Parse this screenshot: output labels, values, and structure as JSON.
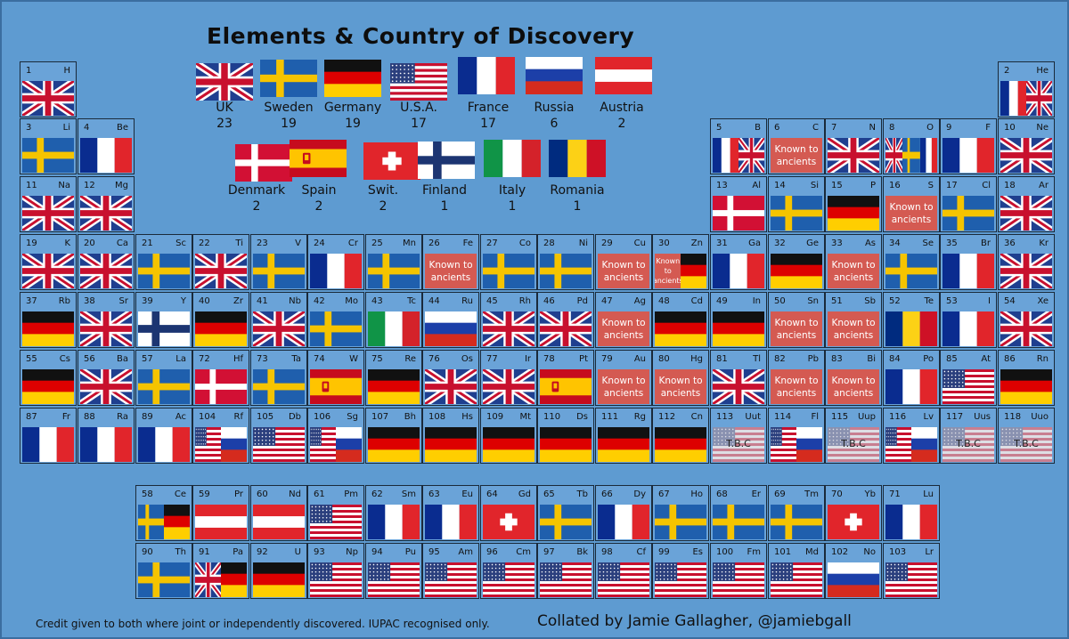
{
  "title": "Elements & Country of Discovery",
  "legend": [
    {
      "name": "UK",
      "count": "23",
      "flag": "uk"
    },
    {
      "name": "Sweden",
      "count": "19",
      "flag": "se"
    },
    {
      "name": "Germany",
      "count": "19",
      "flag": "de"
    },
    {
      "name": "U.S.A.",
      "count": "17",
      "flag": "us"
    },
    {
      "name": "France",
      "count": "17",
      "flag": "fr"
    },
    {
      "name": "Russia",
      "count": "6",
      "flag": "ru"
    },
    {
      "name": "Austria",
      "count": "2",
      "flag": "at"
    },
    {
      "name": "Denmark",
      "count": "2",
      "flag": "dk"
    },
    {
      "name": "Spain",
      "count": "2",
      "flag": "es"
    },
    {
      "name": "Swit.",
      "count": "2",
      "flag": "ch"
    },
    {
      "name": "Finland",
      "count": "1",
      "flag": "fi"
    },
    {
      "name": "Italy",
      "count": "1",
      "flag": "it"
    },
    {
      "name": "Romania",
      "count": "1",
      "flag": "ro"
    }
  ],
  "known_label": "Known to ancients",
  "tbc_label": "T.B.C",
  "elements": [
    {
      "n": "1",
      "s": "H",
      "f": [
        "uk"
      ]
    },
    {
      "n": "2",
      "s": "He",
      "f": [
        "fr",
        "uk"
      ]
    },
    {
      "n": "3",
      "s": "Li",
      "f": [
        "se"
      ]
    },
    {
      "n": "4",
      "s": "Be",
      "f": [
        "fr"
      ]
    },
    {
      "n": "5",
      "s": "B",
      "f": [
        "fr",
        "uk"
      ]
    },
    {
      "n": "6",
      "s": "C",
      "f": [
        "ka"
      ]
    },
    {
      "n": "7",
      "s": "N",
      "f": [
        "uk"
      ]
    },
    {
      "n": "8",
      "s": "O",
      "f": [
        "uk",
        "se",
        "fr"
      ]
    },
    {
      "n": "9",
      "s": "F",
      "f": [
        "fr"
      ]
    },
    {
      "n": "10",
      "s": "Ne",
      "f": [
        "uk"
      ]
    },
    {
      "n": "11",
      "s": "Na",
      "f": [
        "uk"
      ]
    },
    {
      "n": "12",
      "s": "Mg",
      "f": [
        "uk"
      ]
    },
    {
      "n": "13",
      "s": "Al",
      "f": [
        "dk"
      ]
    },
    {
      "n": "14",
      "s": "Si",
      "f": [
        "se"
      ]
    },
    {
      "n": "15",
      "s": "P",
      "f": [
        "de"
      ]
    },
    {
      "n": "16",
      "s": "S",
      "f": [
        "ka"
      ]
    },
    {
      "n": "17",
      "s": "Cl",
      "f": [
        "se"
      ]
    },
    {
      "n": "18",
      "s": "Ar",
      "f": [
        "uk"
      ]
    },
    {
      "n": "19",
      "s": "K",
      "f": [
        "uk"
      ]
    },
    {
      "n": "20",
      "s": "Ca",
      "f": [
        "uk"
      ]
    },
    {
      "n": "21",
      "s": "Sc",
      "f": [
        "se"
      ]
    },
    {
      "n": "22",
      "s": "Ti",
      "f": [
        "uk"
      ]
    },
    {
      "n": "23",
      "s": "V",
      "f": [
        "se"
      ]
    },
    {
      "n": "24",
      "s": "Cr",
      "f": [
        "fr"
      ]
    },
    {
      "n": "25",
      "s": "Mn",
      "f": [
        "se"
      ]
    },
    {
      "n": "26",
      "s": "Fe",
      "f": [
        "ka"
      ]
    },
    {
      "n": "27",
      "s": "Co",
      "f": [
        "se"
      ]
    },
    {
      "n": "28",
      "s": "Ni",
      "f": [
        "se"
      ]
    },
    {
      "n": "29",
      "s": "Cu",
      "f": [
        "ka"
      ]
    },
    {
      "n": "30",
      "s": "Zn",
      "f": [
        "ka",
        "de"
      ]
    },
    {
      "n": "31",
      "s": "Ga",
      "f": [
        "fr"
      ]
    },
    {
      "n": "32",
      "s": "Ge",
      "f": [
        "de"
      ]
    },
    {
      "n": "33",
      "s": "As",
      "f": [
        "ka"
      ]
    },
    {
      "n": "34",
      "s": "Se",
      "f": [
        "se"
      ]
    },
    {
      "n": "35",
      "s": "Br",
      "f": [
        "fr"
      ]
    },
    {
      "n": "36",
      "s": "Kr",
      "f": [
        "uk"
      ]
    },
    {
      "n": "37",
      "s": "Rb",
      "f": [
        "de"
      ]
    },
    {
      "n": "38",
      "s": "Sr",
      "f": [
        "uk"
      ]
    },
    {
      "n": "39",
      "s": "Y",
      "f": [
        "fi"
      ]
    },
    {
      "n": "40",
      "s": "Zr",
      "f": [
        "de"
      ]
    },
    {
      "n": "41",
      "s": "Nb",
      "f": [
        "uk"
      ]
    },
    {
      "n": "42",
      "s": "Mo",
      "f": [
        "se"
      ]
    },
    {
      "n": "43",
      "s": "Tc",
      "f": [
        "it"
      ]
    },
    {
      "n": "44",
      "s": "Ru",
      "f": [
        "ru"
      ]
    },
    {
      "n": "45",
      "s": "Rh",
      "f": [
        "uk"
      ]
    },
    {
      "n": "46",
      "s": "Pd",
      "f": [
        "uk"
      ]
    },
    {
      "n": "47",
      "s": "Ag",
      "f": [
        "ka"
      ]
    },
    {
      "n": "48",
      "s": "Cd",
      "f": [
        "de"
      ]
    },
    {
      "n": "49",
      "s": "In",
      "f": [
        "de"
      ]
    },
    {
      "n": "50",
      "s": "Sn",
      "f": [
        "ka"
      ]
    },
    {
      "n": "51",
      "s": "Sb",
      "f": [
        "ka"
      ]
    },
    {
      "n": "52",
      "s": "Te",
      "f": [
        "ro"
      ]
    },
    {
      "n": "53",
      "s": "I",
      "f": [
        "fr"
      ]
    },
    {
      "n": "54",
      "s": "Xe",
      "f": [
        "uk"
      ]
    },
    {
      "n": "55",
      "s": "Cs",
      "f": [
        "de"
      ]
    },
    {
      "n": "56",
      "s": "Ba",
      "f": [
        "uk"
      ]
    },
    {
      "n": "57",
      "s": "La",
      "f": [
        "se"
      ]
    },
    {
      "n": "72",
      "s": "Hf",
      "f": [
        "dk"
      ]
    },
    {
      "n": "73",
      "s": "Ta",
      "f": [
        "se"
      ]
    },
    {
      "n": "74",
      "s": "W",
      "f": [
        "es"
      ]
    },
    {
      "n": "75",
      "s": "Re",
      "f": [
        "de"
      ]
    },
    {
      "n": "76",
      "s": "Os",
      "f": [
        "uk"
      ]
    },
    {
      "n": "77",
      "s": "Ir",
      "f": [
        "uk"
      ]
    },
    {
      "n": "78",
      "s": "Pt",
      "f": [
        "es"
      ]
    },
    {
      "n": "79",
      "s": "Au",
      "f": [
        "ka"
      ]
    },
    {
      "n": "80",
      "s": "Hg",
      "f": [
        "ka"
      ]
    },
    {
      "n": "81",
      "s": "Tl",
      "f": [
        "uk"
      ]
    },
    {
      "n": "82",
      "s": "Pb",
      "f": [
        "ka"
      ]
    },
    {
      "n": "83",
      "s": "Bi",
      "f": [
        "ka"
      ]
    },
    {
      "n": "84",
      "s": "Po",
      "f": [
        "fr"
      ]
    },
    {
      "n": "85",
      "s": "At",
      "f": [
        "us"
      ]
    },
    {
      "n": "86",
      "s": "Rn",
      "f": [
        "de"
      ]
    },
    {
      "n": "87",
      "s": "Fr",
      "f": [
        "fr"
      ]
    },
    {
      "n": "88",
      "s": "Ra",
      "f": [
        "fr"
      ]
    },
    {
      "n": "89",
      "s": "Ac",
      "f": [
        "fr"
      ]
    },
    {
      "n": "104",
      "s": "Rf",
      "f": [
        "us",
        "ru"
      ]
    },
    {
      "n": "105",
      "s": "Db",
      "f": [
        "us"
      ]
    },
    {
      "n": "106",
      "s": "Sg",
      "f": [
        "us",
        "ru"
      ]
    },
    {
      "n": "107",
      "s": "Bh",
      "f": [
        "de"
      ]
    },
    {
      "n": "108",
      "s": "Hs",
      "f": [
        "de"
      ]
    },
    {
      "n": "109",
      "s": "Mt",
      "f": [
        "de"
      ]
    },
    {
      "n": "110",
      "s": "Ds",
      "f": [
        "de"
      ]
    },
    {
      "n": "111",
      "s": "Rg",
      "f": [
        "de"
      ]
    },
    {
      "n": "112",
      "s": "Cn",
      "f": [
        "de"
      ]
    },
    {
      "n": "113",
      "s": "Uut",
      "f": [
        "tbc",
        "us"
      ]
    },
    {
      "n": "114",
      "s": "Fl",
      "f": [
        "us",
        "ru"
      ]
    },
    {
      "n": "115",
      "s": "Uup",
      "f": [
        "tbc",
        "us"
      ]
    },
    {
      "n": "116",
      "s": "Lv",
      "f": [
        "us",
        "ru"
      ]
    },
    {
      "n": "117",
      "s": "Uus",
      "f": [
        "tbc",
        "us"
      ]
    },
    {
      "n": "118",
      "s": "Uuo",
      "f": [
        "tbc",
        "us"
      ]
    },
    {
      "n": "58",
      "s": "Ce",
      "f": [
        "se",
        "de"
      ]
    },
    {
      "n": "59",
      "s": "Pr",
      "f": [
        "at"
      ]
    },
    {
      "n": "60",
      "s": "Nd",
      "f": [
        "at"
      ]
    },
    {
      "n": "61",
      "s": "Pm",
      "f": [
        "us"
      ]
    },
    {
      "n": "62",
      "s": "Sm",
      "f": [
        "fr"
      ]
    },
    {
      "n": "63",
      "s": "Eu",
      "f": [
        "fr"
      ]
    },
    {
      "n": "64",
      "s": "Gd",
      "f": [
        "ch"
      ]
    },
    {
      "n": "65",
      "s": "Tb",
      "f": [
        "se"
      ]
    },
    {
      "n": "66",
      "s": "Dy",
      "f": [
        "fr"
      ]
    },
    {
      "n": "67",
      "s": "Ho",
      "f": [
        "se"
      ]
    },
    {
      "n": "68",
      "s": "Er",
      "f": [
        "se"
      ]
    },
    {
      "n": "69",
      "s": "Tm",
      "f": [
        "se"
      ]
    },
    {
      "n": "70",
      "s": "Yb",
      "f": [
        "ch"
      ]
    },
    {
      "n": "71",
      "s": "Lu",
      "f": [
        "fr"
      ]
    },
    {
      "n": "90",
      "s": "Th",
      "f": [
        "se"
      ]
    },
    {
      "n": "91",
      "s": "Pa",
      "f": [
        "uk",
        "de"
      ]
    },
    {
      "n": "92",
      "s": "U",
      "f": [
        "de"
      ]
    },
    {
      "n": "93",
      "s": "Np",
      "f": [
        "us"
      ]
    },
    {
      "n": "94",
      "s": "Pu",
      "f": [
        "us"
      ]
    },
    {
      "n": "95",
      "s": "Am",
      "f": [
        "us"
      ]
    },
    {
      "n": "96",
      "s": "Cm",
      "f": [
        "us"
      ]
    },
    {
      "n": "97",
      "s": "Bk",
      "f": [
        "us"
      ]
    },
    {
      "n": "98",
      "s": "Cf",
      "f": [
        "us"
      ]
    },
    {
      "n": "99",
      "s": "Es",
      "f": [
        "us"
      ]
    },
    {
      "n": "100",
      "s": "Fm",
      "f": [
        "us"
      ]
    },
    {
      "n": "101",
      "s": "Md",
      "f": [
        "us"
      ]
    },
    {
      "n": "102",
      "s": "No",
      "f": [
        "ru"
      ]
    },
    {
      "n": "103",
      "s": "Lr",
      "f": [
        "us"
      ]
    }
  ],
  "footer": {
    "credit": "Credit given to both where joint or independently discovered. IUPAC recognised only.",
    "collated": "Collated by Jamie Gallagher, @jamiebgall"
  }
}
